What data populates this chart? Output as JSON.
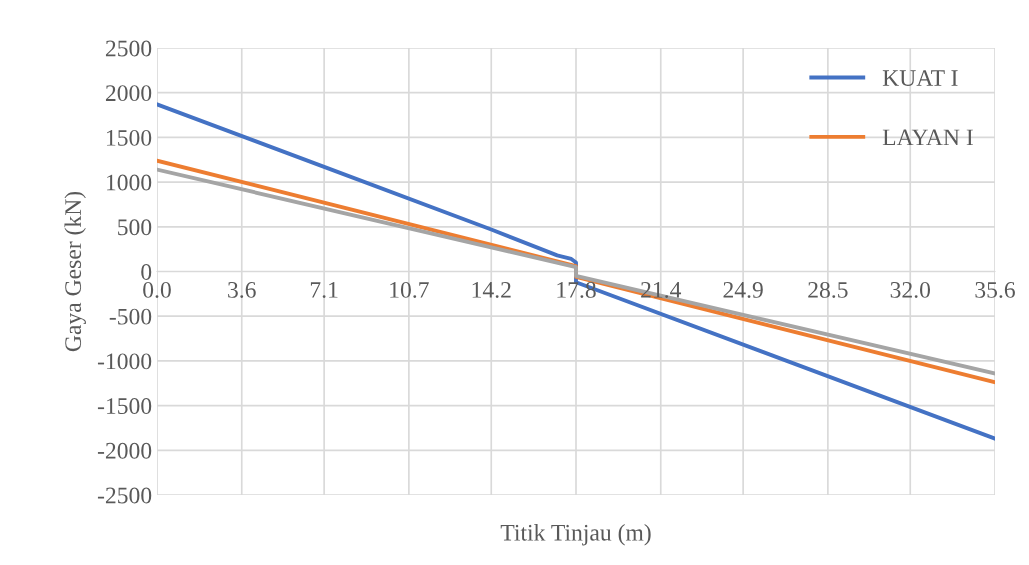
{
  "chart_data": {
    "type": "line",
    "xlabel": "Titik Tinjau (m)",
    "ylabel": "Gaya Geser (kN)",
    "xlim": [
      0,
      35.6
    ],
    "xticks": [
      {
        "value": 0,
        "label": "0.0"
      },
      3.6,
      7.1,
      10.7,
      14.2,
      17.8,
      21.4,
      24.9,
      28.5,
      {
        "value": 32,
        "label": "32.0"
      },
      35.6
    ],
    "ylim": [
      -2500,
      2500
    ],
    "yticks": [
      -2500,
      -2000,
      -1500,
      -1000,
      -500,
      0,
      500,
      1000,
      1500,
      2000,
      2500
    ],
    "grid": true,
    "legend": "top right",
    "marker": "none",
    "line_style": "solid",
    "series": [
      {
        "name": "KUAT I",
        "color": "#4472c4",
        "x": [
          0,
          7.1,
          14.2,
          17.0,
          17.6,
          17.8,
          17.8,
          35.6
        ],
        "values": [
          1870,
          1170,
          470,
          180,
          140,
          100,
          -120,
          -1870
        ]
      },
      {
        "name": "LAYAN I",
        "color": "#ed7d31",
        "x": [
          0,
          17.8,
          17.8,
          35.6
        ],
        "values": [
          1240,
          60,
          -60,
          -1240
        ]
      },
      {
        "color": "#a5a5a5",
        "x": [
          0,
          17.8,
          17.8,
          35.6
        ],
        "values": [
          1140,
          50,
          -50,
          -1140
        ]
      }
    ]
  }
}
